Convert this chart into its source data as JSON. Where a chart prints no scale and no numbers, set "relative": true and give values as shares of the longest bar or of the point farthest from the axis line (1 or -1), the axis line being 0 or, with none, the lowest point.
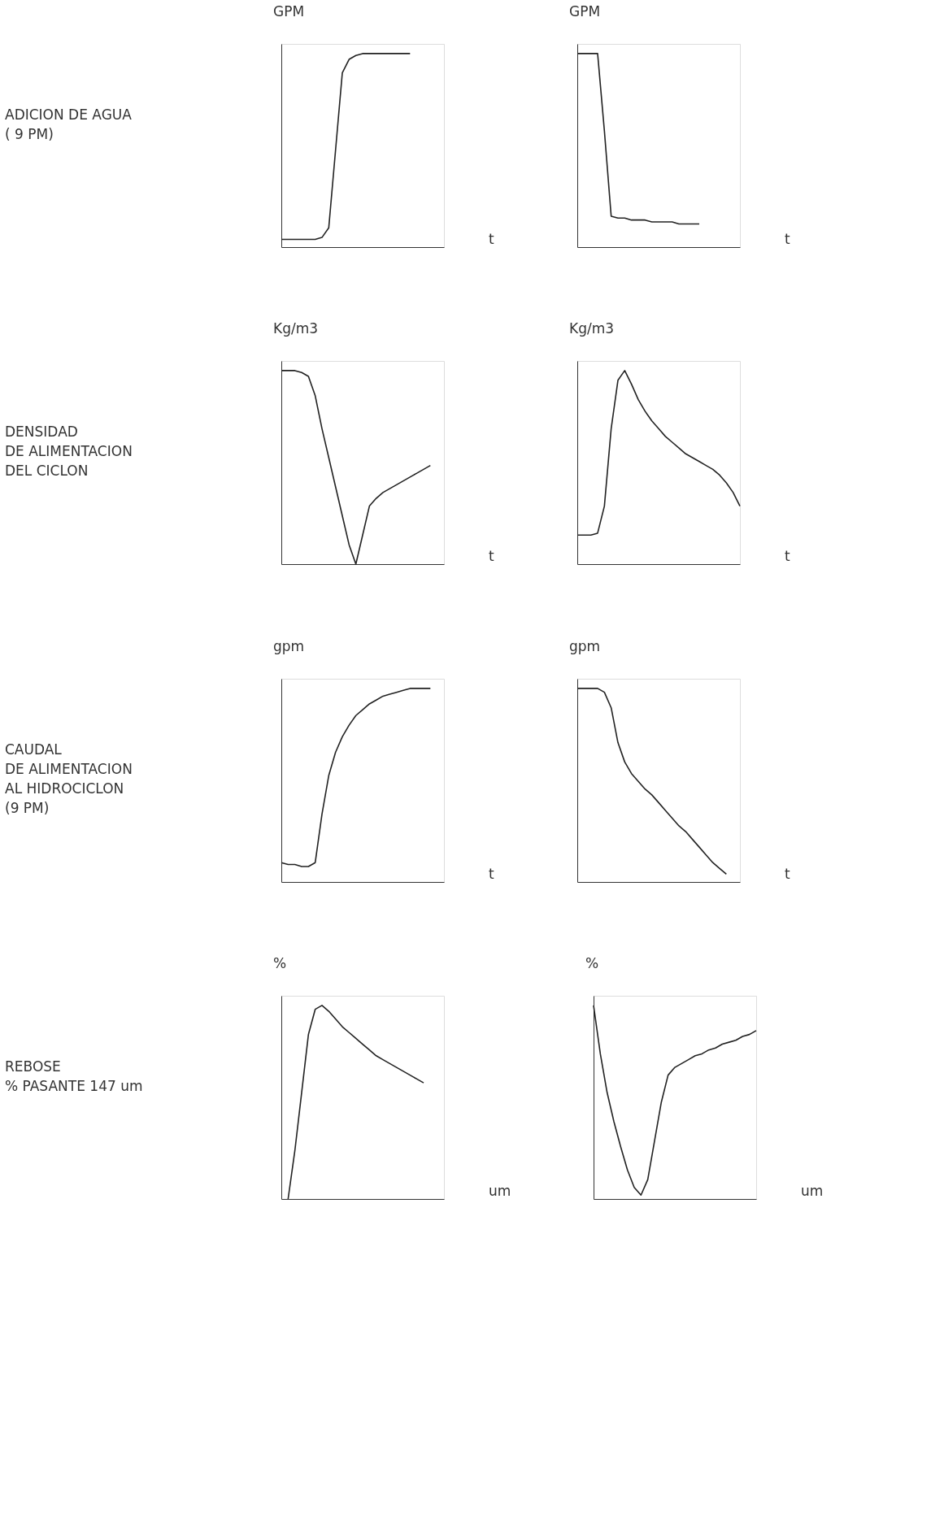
{
  "chart_data": [
    {
      "type": "line",
      "relative": true,
      "ylabel": "GPM",
      "xlabel": "t",
      "annotations": [
        "ADICION DE AGUA\n    ( 9 PM)"
      ],
      "color": "#222222",
      "categories": [
        null,
        null,
        null,
        null,
        null,
        null,
        null,
        null,
        null,
        null,
        null,
        null,
        null,
        null,
        null,
        null,
        null,
        null,
        null,
        null,
        null,
        null,
        null,
        null,
        null
      ],
      "values": [
        0.04,
        0.04,
        0.04,
        0.04,
        0.04,
        0.04,
        0.05,
        0.1,
        0.5,
        0.9,
        0.97,
        0.99,
        1,
        1,
        1,
        1,
        1,
        1,
        1,
        1,
        null,
        null,
        null,
        null,
        null
      ]
    },
    {
      "type": "line",
      "relative": true,
      "ylabel": "GPM",
      "xlabel": "t",
      "color": "#222222",
      "categories": [
        null,
        null,
        null,
        null,
        null,
        null,
        null,
        null,
        null,
        null,
        null,
        null,
        null,
        null,
        null,
        null,
        null,
        null,
        null,
        null,
        null,
        null,
        null,
        null,
        null
      ],
      "values": [
        1,
        1,
        1,
        1,
        0.6,
        0.16,
        0.15,
        0.15,
        0.14,
        0.14,
        0.14,
        0.13,
        0.13,
        0.13,
        0.13,
        0.12,
        0.12,
        0.12,
        0.12,
        null,
        null,
        null,
        null,
        null,
        null
      ]
    },
    {
      "type": "line",
      "relative": true,
      "ylabel": "Kg/m3",
      "xlabel": "t",
      "annotations": [
        "DENSIDAD\nDE  ALIMENTACION\nDEL  CICLON"
      ],
      "color": "#222222",
      "categories": [
        null,
        null,
        null,
        null,
        null,
        null,
        null,
        null,
        null,
        null,
        null,
        null,
        null,
        null,
        null,
        null,
        null,
        null,
        null,
        null,
        null,
        null,
        null,
        null,
        null
      ],
      "values": [
        1,
        1,
        1,
        0.99,
        0.97,
        0.87,
        0.7,
        0.55,
        0.4,
        0.25,
        0.1,
        0.0,
        0.15,
        0.3,
        0.34,
        0.37,
        0.39,
        0.41,
        0.43,
        0.45,
        0.47,
        0.49,
        0.51,
        null,
        null
      ]
    },
    {
      "type": "line",
      "relative": true,
      "ylabel": "Kg/m3",
      "xlabel": "t",
      "color": "#222222",
      "categories": [
        null,
        null,
        null,
        null,
        null,
        null,
        null,
        null,
        null,
        null,
        null,
        null,
        null,
        null,
        null,
        null,
        null,
        null,
        null,
        null,
        null,
        null,
        null,
        null,
        null
      ],
      "values": [
        0.15,
        0.15,
        0.15,
        0.16,
        0.3,
        0.7,
        0.95,
        1.0,
        0.93,
        0.85,
        0.79,
        0.74,
        0.7,
        0.66,
        0.63,
        0.6,
        0.57,
        0.55,
        0.53,
        0.51,
        0.49,
        0.46,
        0.42,
        0.37,
        0.3
      ]
    },
    {
      "type": "line",
      "relative": true,
      "ylabel": "gpm",
      "xlabel": "t",
      "annotations": [
        "CAUDAL\nDE  ALIMENTACION\nAL  HIDROCICLON\n(9  PM)"
      ],
      "color": "#222222",
      "categories": [
        null,
        null,
        null,
        null,
        null,
        null,
        null,
        null,
        null,
        null,
        null,
        null,
        null,
        null,
        null,
        null,
        null,
        null,
        null,
        null,
        null,
        null,
        null,
        null,
        null
      ],
      "values": [
        0.1,
        0.09,
        0.09,
        0.08,
        0.08,
        0.1,
        0.35,
        0.55,
        0.67,
        0.75,
        0.81,
        0.86,
        0.89,
        0.92,
        0.94,
        0.96,
        0.97,
        0.98,
        0.99,
        1.0,
        1.0,
        1.0,
        1.0,
        null,
        null
      ]
    },
    {
      "type": "line",
      "relative": true,
      "ylabel": "gpm",
      "xlabel": "t",
      "color": "#222222",
      "categories": [
        null,
        null,
        null,
        null,
        null,
        null,
        null,
        null,
        null,
        null,
        null,
        null,
        null,
        null,
        null,
        null,
        null,
        null,
        null,
        null,
        null,
        null,
        null,
        null,
        null
      ],
      "values": [
        1,
        1,
        1,
        1,
        0.98,
        0.9,
        0.72,
        0.62,
        0.56,
        0.52,
        0.48,
        0.45,
        0.41,
        0.37,
        0.33,
        0.29,
        0.26,
        0.22,
        0.18,
        0.14,
        0.1,
        0.07,
        0.04,
        null,
        null
      ]
    },
    {
      "type": "line",
      "relative": true,
      "ylabel": "%",
      "xlabel": "um",
      "annotations": [
        "REBOSE\n%  PASANTE  147  um"
      ],
      "color": "#222222",
      "categories": [
        null,
        null,
        null,
        null,
        null,
        null,
        null,
        null,
        null,
        null,
        null,
        null,
        null,
        null,
        null,
        null,
        null,
        null,
        null,
        null,
        null,
        null,
        null,
        null,
        null
      ],
      "values": [
        null,
        0.0,
        0.25,
        0.55,
        0.85,
        0.98,
        1.0,
        0.97,
        0.93,
        0.89,
        0.86,
        0.83,
        0.8,
        0.77,
        0.74,
        0.72,
        0.7,
        0.68,
        0.66,
        0.64,
        0.62,
        0.6,
        null,
        null,
        null
      ]
    },
    {
      "type": "line",
      "relative": true,
      "ylabel": "%",
      "xlabel": "um",
      "color": "#222222",
      "categories": [
        null,
        null,
        null,
        null,
        null,
        null,
        null,
        null,
        null,
        null,
        null,
        null,
        null,
        null,
        null,
        null,
        null,
        null,
        null,
        null,
        null,
        null,
        null,
        null,
        null
      ],
      "values": [
        1.0,
        0.75,
        0.55,
        0.4,
        0.27,
        0.15,
        0.06,
        0.02,
        0.1,
        0.3,
        0.5,
        0.64,
        0.68,
        0.7,
        0.72,
        0.74,
        0.75,
        0.77,
        0.78,
        0.8,
        0.81,
        0.82,
        0.84,
        0.85,
        0.87
      ]
    }
  ]
}
